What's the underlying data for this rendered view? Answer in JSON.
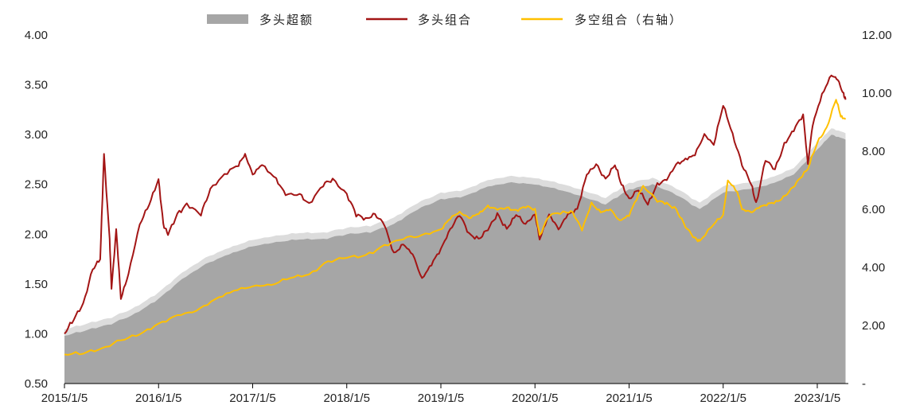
{
  "chart_data": {
    "type": "line",
    "legend": {
      "position": "top-center",
      "items": [
        {
          "label": "多头超额",
          "kind": "area",
          "color": "#a6a6a6"
        },
        {
          "label": "多头组合",
          "kind": "line",
          "color": "#a31515"
        },
        {
          "label": "多空组合（右轴）",
          "kind": "line",
          "color": "#ffc000"
        }
      ]
    },
    "x_axis": {
      "labels": [
        "2015/1/5",
        "2016/1/5",
        "2017/1/5",
        "2018/1/5",
        "2019/1/5",
        "2020/1/5",
        "2021/1/5",
        "2022/1/5",
        "2023/1/5"
      ],
      "range": [
        "2015/1/5",
        "2023/4/30"
      ]
    },
    "y_left": {
      "ylim": [
        0.5,
        4.0
      ],
      "ticks": [
        4.0,
        3.5,
        3.0,
        2.5,
        2.0,
        1.5,
        1.0,
        0.5
      ],
      "tick_labels": [
        "4.00",
        "3.50",
        "3.00",
        "2.50",
        "2.00",
        "1.50",
        "1.00",
        "0.50"
      ]
    },
    "y_right": {
      "ylim": [
        0,
        12
      ],
      "ticks": [
        12,
        10,
        8,
        6,
        4,
        2,
        0
      ],
      "tick_labels": [
        "12.00",
        "10.00",
        "8.00",
        "6.00",
        "4.00",
        "2.00",
        "-"
      ]
    },
    "grid": false,
    "series": [
      {
        "name": "多头超额",
        "type": "area",
        "axis": "left",
        "color": "#a6a6a6",
        "points": [
          [
            2015.0,
            0.98
          ],
          [
            2015.25,
            1.04
          ],
          [
            2015.5,
            1.1
          ],
          [
            2015.75,
            1.2
          ],
          [
            2016.0,
            1.35
          ],
          [
            2016.25,
            1.55
          ],
          [
            2016.5,
            1.7
          ],
          [
            2016.75,
            1.8
          ],
          [
            2017.0,
            1.88
          ],
          [
            2017.25,
            1.92
          ],
          [
            2017.5,
            1.95
          ],
          [
            2017.75,
            1.95
          ],
          [
            2018.0,
            2.0
          ],
          [
            2018.25,
            2.02
          ],
          [
            2018.5,
            2.1
          ],
          [
            2018.75,
            2.25
          ],
          [
            2019.0,
            2.35
          ],
          [
            2019.25,
            2.38
          ],
          [
            2019.5,
            2.48
          ],
          [
            2019.75,
            2.52
          ],
          [
            2020.0,
            2.5
          ],
          [
            2020.25,
            2.45
          ],
          [
            2020.5,
            2.38
          ],
          [
            2020.75,
            2.3
          ],
          [
            2021.0,
            2.45
          ],
          [
            2021.25,
            2.5
          ],
          [
            2021.5,
            2.4
          ],
          [
            2021.75,
            2.25
          ],
          [
            2022.0,
            2.42
          ],
          [
            2022.25,
            2.45
          ],
          [
            2022.5,
            2.5
          ],
          [
            2022.75,
            2.6
          ],
          [
            2023.0,
            2.85
          ],
          [
            2023.15,
            3.0
          ],
          [
            2023.3,
            2.95
          ]
        ]
      },
      {
        "name": "多头组合",
        "type": "line",
        "axis": "left",
        "color": "#a31515",
        "points": [
          [
            2015.0,
            1.0
          ],
          [
            2015.1,
            1.15
          ],
          [
            2015.2,
            1.3
          ],
          [
            2015.3,
            1.65
          ],
          [
            2015.38,
            1.75
          ],
          [
            2015.42,
            2.8
          ],
          [
            2015.48,
            1.95
          ],
          [
            2015.5,
            1.45
          ],
          [
            2015.55,
            2.05
          ],
          [
            2015.6,
            1.35
          ],
          [
            2015.68,
            1.6
          ],
          [
            2015.8,
            2.1
          ],
          [
            2015.9,
            2.3
          ],
          [
            2016.0,
            2.55
          ],
          [
            2016.05,
            2.1
          ],
          [
            2016.1,
            2.0
          ],
          [
            2016.2,
            2.2
          ],
          [
            2016.3,
            2.3
          ],
          [
            2016.45,
            2.2
          ],
          [
            2016.55,
            2.45
          ],
          [
            2016.7,
            2.6
          ],
          [
            2016.85,
            2.7
          ],
          [
            2016.92,
            2.8
          ],
          [
            2017.0,
            2.6
          ],
          [
            2017.1,
            2.7
          ],
          [
            2017.25,
            2.55
          ],
          [
            2017.35,
            2.4
          ],
          [
            2017.5,
            2.4
          ],
          [
            2017.6,
            2.3
          ],
          [
            2017.75,
            2.5
          ],
          [
            2017.85,
            2.55
          ],
          [
            2018.0,
            2.4
          ],
          [
            2018.1,
            2.2
          ],
          [
            2018.2,
            2.15
          ],
          [
            2018.3,
            2.2
          ],
          [
            2018.4,
            2.1
          ],
          [
            2018.5,
            1.8
          ],
          [
            2018.6,
            1.9
          ],
          [
            2018.7,
            1.8
          ],
          [
            2018.8,
            1.55
          ],
          [
            2018.9,
            1.7
          ],
          [
            2019.0,
            1.85
          ],
          [
            2019.1,
            2.05
          ],
          [
            2019.2,
            2.2
          ],
          [
            2019.3,
            2.0
          ],
          [
            2019.4,
            1.95
          ],
          [
            2019.5,
            2.05
          ],
          [
            2019.6,
            2.2
          ],
          [
            2019.7,
            2.05
          ],
          [
            2019.8,
            2.2
          ],
          [
            2019.9,
            2.1
          ],
          [
            2020.0,
            2.2
          ],
          [
            2020.05,
            1.95
          ],
          [
            2020.15,
            2.2
          ],
          [
            2020.25,
            2.05
          ],
          [
            2020.35,
            2.2
          ],
          [
            2020.45,
            2.25
          ],
          [
            2020.55,
            2.6
          ],
          [
            2020.65,
            2.7
          ],
          [
            2020.75,
            2.55
          ],
          [
            2020.85,
            2.7
          ],
          [
            2020.92,
            2.5
          ],
          [
            2021.0,
            2.35
          ],
          [
            2021.1,
            2.45
          ],
          [
            2021.2,
            2.3
          ],
          [
            2021.3,
            2.5
          ],
          [
            2021.4,
            2.55
          ],
          [
            2021.5,
            2.7
          ],
          [
            2021.6,
            2.75
          ],
          [
            2021.7,
            2.8
          ],
          [
            2021.8,
            3.0
          ],
          [
            2021.9,
            2.9
          ],
          [
            2022.0,
            3.3
          ],
          [
            2022.1,
            3.0
          ],
          [
            2022.2,
            2.7
          ],
          [
            2022.3,
            2.5
          ],
          [
            2022.35,
            2.3
          ],
          [
            2022.45,
            2.75
          ],
          [
            2022.55,
            2.65
          ],
          [
            2022.65,
            2.9
          ],
          [
            2022.75,
            3.05
          ],
          [
            2022.85,
            3.2
          ],
          [
            2022.9,
            2.7
          ],
          [
            2022.95,
            3.1
          ],
          [
            2023.05,
            3.4
          ],
          [
            2023.15,
            3.6
          ],
          [
            2023.22,
            3.55
          ],
          [
            2023.28,
            3.4
          ],
          [
            2023.3,
            3.35
          ]
        ]
      },
      {
        "name": "多空组合（右轴）",
        "type": "line",
        "axis": "right",
        "color": "#ffc000",
        "points": [
          [
            2015.0,
            1.0
          ],
          [
            2015.2,
            1.05
          ],
          [
            2015.4,
            1.2
          ],
          [
            2015.6,
            1.5
          ],
          [
            2015.8,
            1.7
          ],
          [
            2016.0,
            2.05
          ],
          [
            2016.2,
            2.35
          ],
          [
            2016.4,
            2.5
          ],
          [
            2016.6,
            2.9
          ],
          [
            2016.8,
            3.2
          ],
          [
            2017.0,
            3.35
          ],
          [
            2017.2,
            3.4
          ],
          [
            2017.4,
            3.65
          ],
          [
            2017.6,
            3.75
          ],
          [
            2017.8,
            4.2
          ],
          [
            2018.0,
            4.35
          ],
          [
            2018.2,
            4.4
          ],
          [
            2018.4,
            4.75
          ],
          [
            2018.6,
            5.0
          ],
          [
            2018.8,
            5.1
          ],
          [
            2019.0,
            5.3
          ],
          [
            2019.1,
            5.7
          ],
          [
            2019.2,
            5.9
          ],
          [
            2019.3,
            5.7
          ],
          [
            2019.4,
            5.85
          ],
          [
            2019.5,
            6.1
          ],
          [
            2019.6,
            6.0
          ],
          [
            2019.7,
            6.05
          ],
          [
            2019.8,
            5.95
          ],
          [
            2019.9,
            6.1
          ],
          [
            2020.0,
            6.0
          ],
          [
            2020.05,
            5.1
          ],
          [
            2020.15,
            5.8
          ],
          [
            2020.3,
            5.9
          ],
          [
            2020.4,
            5.9
          ],
          [
            2020.5,
            5.3
          ],
          [
            2020.6,
            6.2
          ],
          [
            2020.7,
            5.9
          ],
          [
            2020.8,
            6.0
          ],
          [
            2020.9,
            5.6
          ],
          [
            2021.0,
            5.8
          ],
          [
            2021.1,
            6.5
          ],
          [
            2021.15,
            6.8
          ],
          [
            2021.3,
            6.3
          ],
          [
            2021.4,
            6.2
          ],
          [
            2021.5,
            6.0
          ],
          [
            2021.6,
            5.4
          ],
          [
            2021.7,
            5.0
          ],
          [
            2021.75,
            4.9
          ],
          [
            2021.9,
            5.5
          ],
          [
            2022.0,
            5.8
          ],
          [
            2022.05,
            7.0
          ],
          [
            2022.15,
            6.6
          ],
          [
            2022.2,
            6.0
          ],
          [
            2022.3,
            5.9
          ],
          [
            2022.4,
            6.1
          ],
          [
            2022.5,
            6.2
          ],
          [
            2022.6,
            6.3
          ],
          [
            2022.7,
            6.6
          ],
          [
            2022.8,
            7.0
          ],
          [
            2022.9,
            7.4
          ],
          [
            2023.0,
            8.3
          ],
          [
            2023.1,
            8.8
          ],
          [
            2023.2,
            9.8
          ],
          [
            2023.25,
            9.2
          ],
          [
            2023.3,
            9.1
          ]
        ]
      }
    ]
  }
}
